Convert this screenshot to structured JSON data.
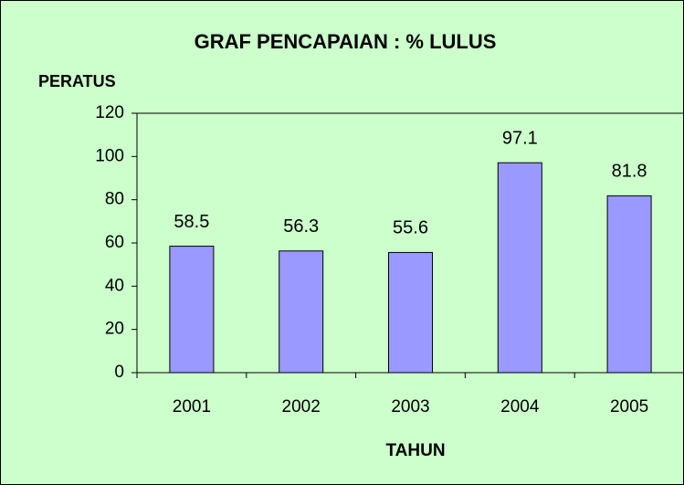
{
  "chart_data": {
    "type": "bar",
    "title": "GRAF PENCAPAIAN : % LULUS",
    "y_label": "PERATUS",
    "x_label": "TAHUN",
    "categories": [
      "2001",
      "2002",
      "2003",
      "2004",
      "2005"
    ],
    "values": [
      58.5,
      56.3,
      55.6,
      97.1,
      81.8
    ],
    "color": "#9999ff",
    "ylim": [
      0,
      120
    ],
    "yticks": [
      0,
      20,
      40,
      60,
      80,
      100,
      120
    ],
    "grid": false,
    "show_value_labels": true
  }
}
